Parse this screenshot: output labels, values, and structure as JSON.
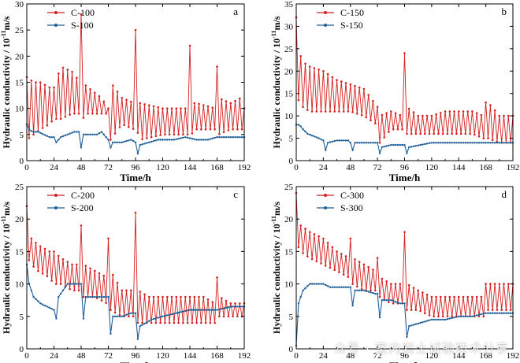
{
  "figure": {
    "colors": {
      "c_series": "#d42020",
      "s_series": "#1f5f99",
      "axis": "#000000"
    },
    "xlabel": "Time/h",
    "ylabel_base": "Hydraulic conductivity / 10",
    "ylabel_exp": "-11",
    "ylabel_unit": "m/s",
    "watermark": "众号 · 室内岩土试验技术分享"
  },
  "chart_data": [
    {
      "type": "line",
      "panel_label": "a",
      "xlabel": "Time/h",
      "ylabel": "Hydraulic conductivity / 10^-11 m/s",
      "xlim": [
        0,
        192
      ],
      "ylim": [
        0,
        30
      ],
      "xticks": [
        0,
        24,
        48,
        72,
        96,
        120,
        144,
        168,
        192
      ],
      "yticks": [
        0,
        5,
        10,
        15,
        20,
        25,
        30
      ],
      "legend_position": "top-left",
      "series": [
        {
          "name": "C-100",
          "style": "oscillating",
          "envelope_x": [
            0,
            6,
            12,
            20,
            24,
            30,
            40,
            47,
            48,
            49,
            54,
            66,
            72,
            74,
            84,
            95,
            96,
            97,
            100,
            120,
            143,
            144,
            145,
            150,
            166,
            168,
            169,
            180,
            189,
            190,
            192
          ],
          "envelope_low": [
            4,
            5,
            6,
            7,
            8,
            8,
            9,
            9,
            6,
            8,
            9,
            9,
            9,
            4,
            7,
            6,
            3,
            6,
            4,
            5,
            5,
            7,
            5,
            6,
            6,
            6,
            5,
            6,
            6,
            6,
            8
          ],
          "envelope_high": [
            16,
            15,
            15,
            14,
            14,
            18,
            17,
            15,
            28,
            15,
            14,
            12,
            10,
            15,
            12,
            11,
            25,
            14,
            11,
            10,
            10,
            22,
            11,
            11,
            10,
            18,
            12,
            11,
            12,
            24,
            10
          ]
        },
        {
          "name": "S-100",
          "style": "smooth",
          "x": [
            0,
            2,
            5,
            10,
            15,
            20,
            24,
            26,
            30,
            36,
            42,
            47,
            48,
            50,
            56,
            62,
            66,
            72,
            73,
            76,
            84,
            92,
            96,
            97,
            100,
            108,
            116,
            120,
            130,
            140,
            150,
            160,
            168,
            176,
            184,
            192
          ],
          "values": [
            7,
            6,
            5.5,
            5.5,
            5,
            4.5,
            4.5,
            3.5,
            4.5,
            5,
            5.5,
            5.5,
            2.5,
            5,
            5,
            5,
            5.5,
            4,
            2,
            3.5,
            3.5,
            4,
            3.5,
            0.5,
            3,
            3.5,
            4,
            4,
            4,
            4.5,
            4,
            4,
            4.5,
            4.5,
            4.5,
            4.5
          ]
        }
      ]
    },
    {
      "type": "line",
      "panel_label": "b",
      "xlabel": "Time/h",
      "ylabel": "Hydraulic conductivity / 10^-11 m/s",
      "xlim": [
        0,
        192
      ],
      "ylim": [
        0,
        35
      ],
      "xticks": [
        0,
        24,
        48,
        72,
        96,
        120,
        144,
        168,
        192
      ],
      "yticks": [
        0,
        5,
        10,
        15,
        20,
        25,
        30,
        35
      ],
      "legend_position": "top-left",
      "series": [
        {
          "name": "C-150",
          "style": "oscillating",
          "envelope_x": [
            0,
            1,
            3,
            6,
            12,
            24,
            36,
            48,
            60,
            66,
            72,
            74,
            84,
            94,
            96,
            98,
            108,
            120,
            132,
            144,
            156,
            166,
            168,
            170,
            180,
            192
          ],
          "envelope_low": [
            12,
            14,
            13,
            12,
            11,
            11,
            11,
            11,
            10,
            9,
            8,
            4,
            7,
            7,
            4,
            6,
            6,
            6,
            6,
            6,
            6,
            5,
            3,
            5,
            4,
            4
          ],
          "envelope_high": [
            32,
            28,
            24,
            22,
            21,
            20,
            18,
            17,
            16,
            14,
            12,
            10,
            11,
            10,
            24,
            12,
            10,
            10,
            11,
            11,
            11,
            10,
            13,
            13,
            10,
            10
          ]
        },
        {
          "name": "S-150",
          "style": "smooth",
          "x": [
            0,
            3,
            6,
            10,
            15,
            20,
            24,
            25,
            28,
            36,
            46,
            48,
            49,
            52,
            60,
            70,
            72,
            73,
            76,
            84,
            92,
            96,
            97,
            100,
            110,
            120,
            132,
            144,
            156,
            168,
            180,
            192
          ],
          "values": [
            8,
            8,
            7,
            6,
            5.5,
            5,
            4.5,
            1.5,
            4,
            4.5,
            4.5,
            4,
            1.5,
            4,
            4,
            4,
            4,
            1,
            3,
            3.5,
            3.5,
            3.5,
            1,
            3,
            3.5,
            4,
            4,
            4,
            4,
            4,
            4,
            4
          ]
        }
      ]
    },
    {
      "type": "line",
      "panel_label": "c",
      "xlabel": "Time/h",
      "ylabel": "Hydraulic conductivity / 10^-11 m/s",
      "xlim": [
        0,
        192
      ],
      "ylim": [
        0,
        25
      ],
      "xticks": [
        0,
        24,
        48,
        72,
        96,
        120,
        144,
        168,
        192
      ],
      "yticks": [
        0,
        5,
        10,
        15,
        20,
        25
      ],
      "legend_position": "top-left",
      "series": [
        {
          "name": "C-200",
          "style": "oscillating",
          "envelope_x": [
            0,
            1,
            4,
            10,
            20,
            24,
            30,
            40,
            47,
            48,
            50,
            60,
            71,
            72,
            74,
            84,
            95,
            96,
            98,
            108,
            120,
            130,
            144,
            156,
            166,
            168,
            170,
            180,
            192
          ],
          "envelope_low": [
            13,
            14,
            13,
            12,
            11,
            10,
            10,
            9,
            9,
            3,
            8,
            8,
            7,
            2,
            6,
            5,
            5,
            1,
            4,
            4,
            4,
            4,
            4,
            4,
            4,
            6,
            5,
            5,
            5
          ],
          "envelope_high": [
            22,
            18,
            17,
            16,
            15,
            15,
            14,
            13,
            13,
            19,
            13,
            12,
            11,
            17,
            12,
            9,
            9,
            21,
            9,
            8,
            8,
            8,
            8,
            8,
            7,
            11,
            8,
            7,
            7
          ]
        },
        {
          "name": "S-200",
          "style": "smooth",
          "x": [
            0,
            2,
            6,
            12,
            18,
            24,
            25,
            28,
            36,
            46,
            48,
            49,
            52,
            60,
            70,
            72,
            73,
            76,
            84,
            92,
            96,
            97,
            100,
            110,
            120,
            132,
            144,
            156,
            168,
            180,
            192
          ],
          "values": [
            13,
            10,
            8,
            7,
            6.5,
            6,
            3,
            8,
            10,
            10,
            10,
            3,
            8,
            8,
            8,
            8,
            1,
            5,
            5,
            5.5,
            5.5,
            0.5,
            3.5,
            4.5,
            5,
            5.5,
            6,
            6,
            6,
            6.5,
            6.5
          ]
        }
      ]
    },
    {
      "type": "line",
      "panel_label": "d",
      "xlabel": "Time/h",
      "ylabel": "Hydraulic conductivity / 10^-11 m/s",
      "xlim": [
        0,
        192
      ],
      "ylim": [
        0,
        25
      ],
      "xticks": [
        0,
        24,
        48,
        72,
        96,
        120,
        144,
        168,
        192
      ],
      "yticks": [
        0,
        5,
        10,
        15,
        20,
        25
      ],
      "legend_position": "top-left",
      "series": [
        {
          "name": "C-300",
          "style": "oscillating",
          "envelope_x": [
            0,
            1,
            4,
            12,
            24,
            36,
            47,
            48,
            50,
            60,
            70,
            72,
            74,
            84,
            94,
            96,
            98,
            108,
            120,
            132,
            144,
            156,
            166,
            168,
            170,
            180,
            192
          ],
          "envelope_low": [
            14,
            16,
            15,
            14,
            13,
            12,
            11,
            9,
            10,
            9,
            9,
            7,
            8,
            7,
            7,
            4,
            6,
            6,
            5,
            5,
            5,
            5,
            5,
            4,
            6,
            6,
            6
          ],
          "envelope_high": [
            24,
            20,
            19,
            18,
            17,
            15,
            14,
            17,
            14,
            13,
            12,
            14,
            11,
            10,
            10,
            18,
            10,
            9,
            8,
            8,
            8,
            8,
            8,
            10,
            10,
            10,
            10
          ]
        },
        {
          "name": "S-300",
          "style": "smooth",
          "x": [
            0,
            2,
            6,
            12,
            18,
            24,
            30,
            36,
            46,
            48,
            49,
            52,
            60,
            70,
            72,
            73,
            76,
            84,
            92,
            96,
            97,
            100,
            110,
            120,
            132,
            144,
            156,
            168,
            180,
            192
          ],
          "values": [
            0.5,
            7,
            9,
            10,
            10,
            10,
            9.5,
            9.5,
            9.5,
            9.5,
            5.5,
            9,
            9,
            8.5,
            8.5,
            3.5,
            7.5,
            7.5,
            7,
            7,
            1,
            3.5,
            4,
            4.5,
            4.5,
            5,
            5,
            5.5,
            5.5,
            5.5
          ]
        }
      ]
    }
  ]
}
